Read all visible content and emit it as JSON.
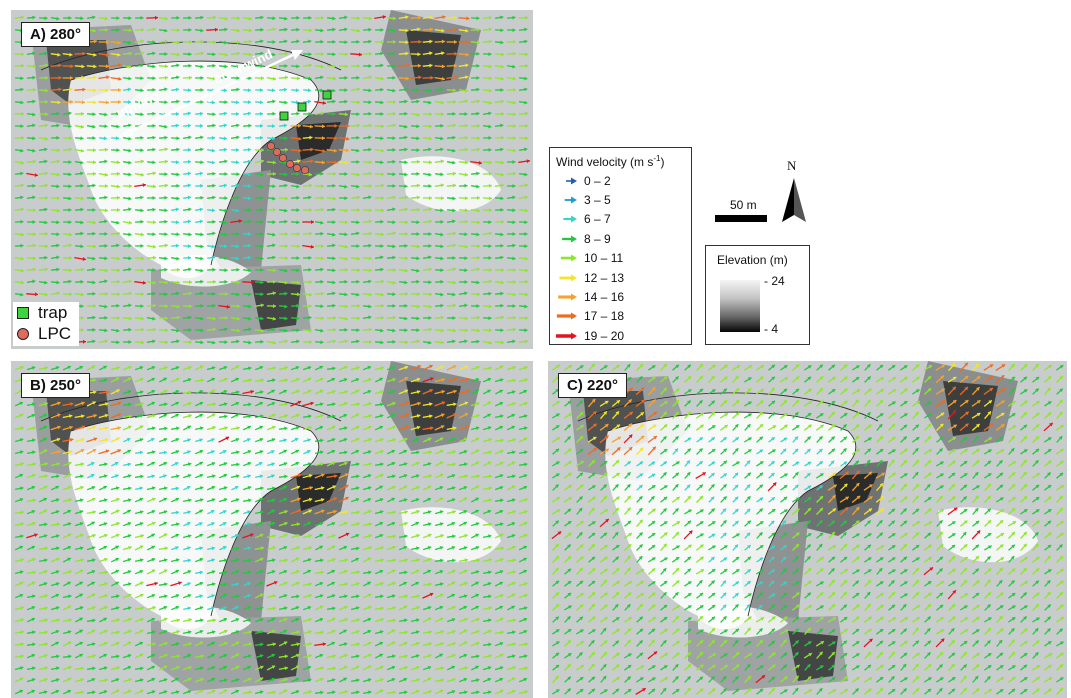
{
  "panels": [
    {
      "label": "A) 280°",
      "angle_deg": 280
    },
    {
      "label": "B) 250°",
      "angle_deg": 250
    },
    {
      "label": "C) 220°",
      "angle_deg": 220
    }
  ],
  "annotations": {
    "upwind": "upwind",
    "downwind": "downwind"
  },
  "map_legend": {
    "trap": "trap",
    "lpc": "LPC",
    "trap_color": "#3ed43e",
    "lpc_color": "#e06a5e"
  },
  "wind_legend": {
    "title": "Wind velocity (m s",
    "title_sup": "-1",
    "title_end": ")",
    "classes": [
      {
        "label": "0 – 2",
        "color": "#1f5fb4"
      },
      {
        "label": "3 – 5",
        "color": "#1c9ed2"
      },
      {
        "label": "6 – 7",
        "color": "#33d6c8"
      },
      {
        "label": "8 – 9",
        "color": "#22c93e"
      },
      {
        "label": "10 – 11",
        "color": "#8ee62b"
      },
      {
        "label": "12 – 13",
        "color": "#f2e62a"
      },
      {
        "label": "14 – 16",
        "color": "#f7a22a"
      },
      {
        "label": "17 – 18",
        "color": "#f06a1f"
      },
      {
        "label": "19 – 20",
        "color": "#e4141e"
      }
    ]
  },
  "elevation_legend": {
    "title": "Elevation (m)",
    "max": "24",
    "min": "4"
  },
  "scale_bar": {
    "label": "50 m"
  },
  "north_arrow": {
    "label": "N"
  }
}
